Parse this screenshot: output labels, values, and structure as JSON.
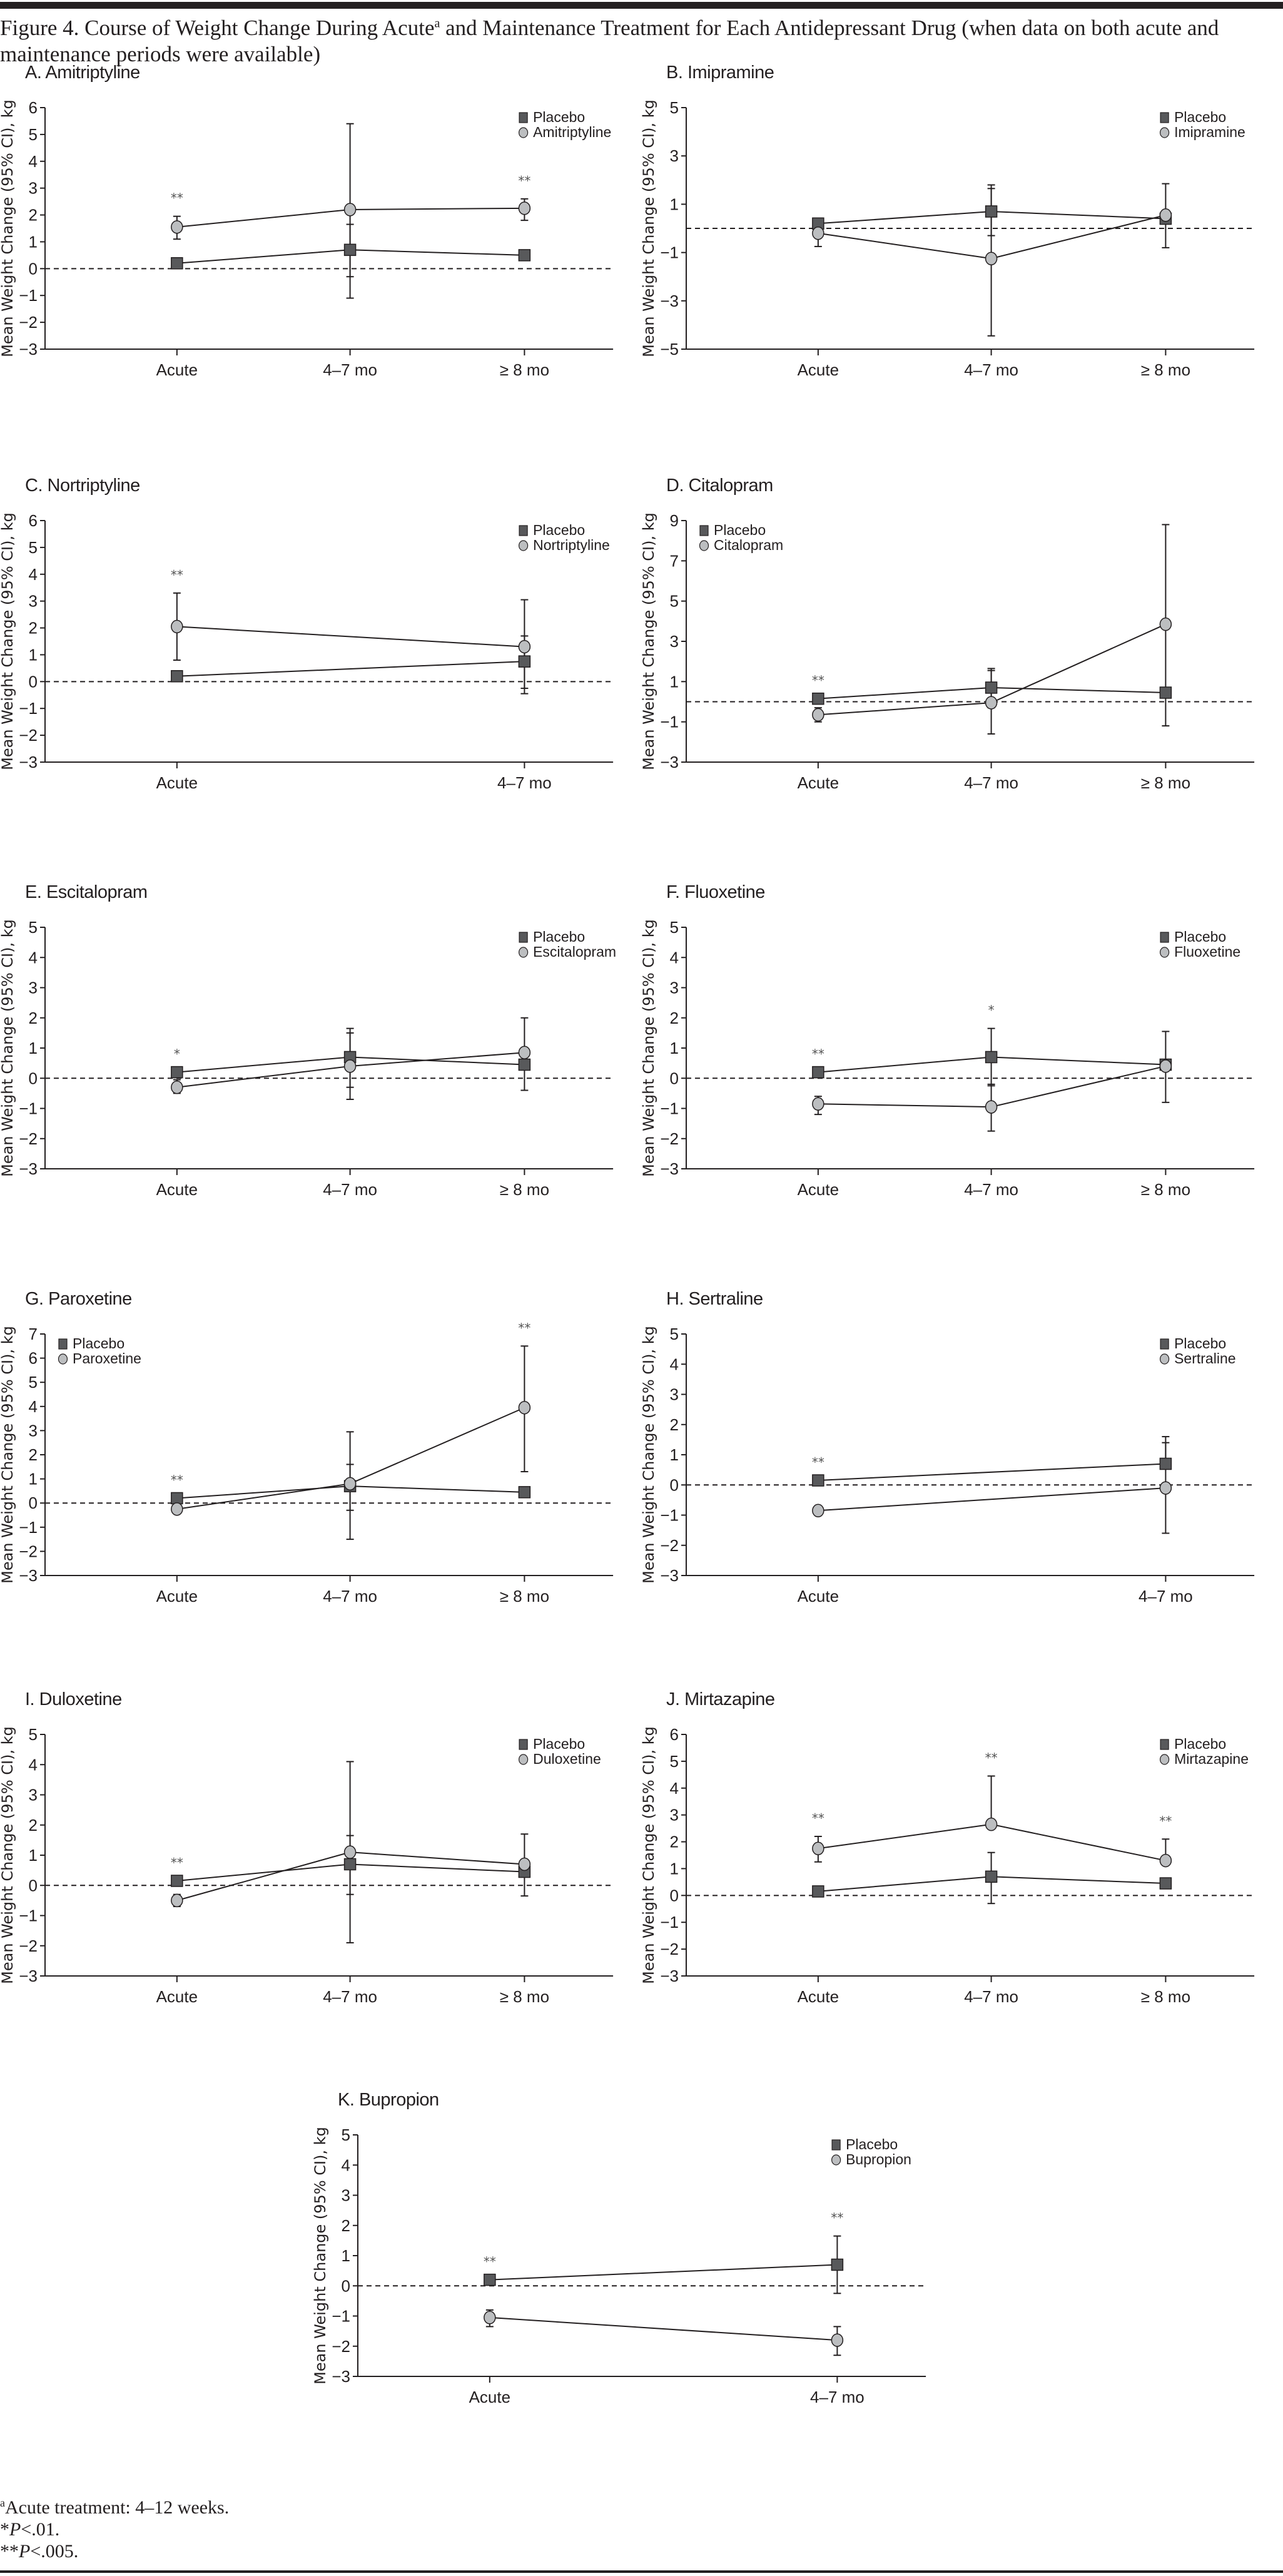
{
  "figure": {
    "title_part1": "Figure 4. Course of Weight Change During Acute",
    "title_sup": "a",
    "title_part2": " and Maintenance Treatment for Each Antidepressant Drug (when data on both acute and maintenance periods were available)"
  },
  "footnotes": {
    "a_marker": "a",
    "a_text": "Acute treatment: 4–12 weeks.",
    "single_star": "*",
    "single_p": "P",
    "single_text": "<.01.",
    "double_star": "**",
    "double_p": "P",
    "double_text": "<.005."
  },
  "colors": {
    "placebo_fill": "#58595b",
    "drug_fill": "#bcbec0",
    "axis": "#231f20",
    "significance": "#555555"
  },
  "chart_data": [
    {
      "type": "line",
      "panel": "A",
      "title": "A. Amitriptyline",
      "xlabel": "",
      "ylabel": "Mean Weight Change (95% CI), kg",
      "categories": [
        "Acute",
        "4–7 mo",
        "≥ 8 mo"
      ],
      "ylim": [
        -3,
        6
      ],
      "yticks": [
        6,
        5,
        4,
        3,
        2,
        1,
        0,
        -1,
        -2,
        -3
      ],
      "legend_position": "top-right",
      "reference_line": 0,
      "series": [
        {
          "name": "Placebo",
          "marker": "square",
          "values": [
            0.2,
            0.7,
            0.5
          ],
          "ci_low": [
            null,
            -0.3,
            null
          ],
          "ci_high": [
            null,
            1.65,
            null
          ]
        },
        {
          "name": "Amitriptyline",
          "marker": "circle",
          "values": [
            1.55,
            2.2,
            2.25
          ],
          "ci_low": [
            1.1,
            -1.1,
            1.8
          ],
          "ci_high": [
            1.95,
            5.4,
            2.6
          ]
        }
      ],
      "significance": [
        "**",
        "",
        "**"
      ]
    },
    {
      "type": "line",
      "panel": "B",
      "title": "B. Imipramine",
      "xlabel": "",
      "ylabel": "Mean Weight Change (95% CI), kg",
      "categories": [
        "Acute",
        "4–7 mo",
        "≥ 8 mo"
      ],
      "ylim": [
        -5,
        5
      ],
      "yticks": [
        5,
        3,
        1,
        -1,
        -3,
        -5
      ],
      "legend_position": "top-right",
      "reference_line": 0,
      "series": [
        {
          "name": "Placebo",
          "marker": "square",
          "values": [
            0.2,
            0.7,
            0.4
          ],
          "ci_low": [
            null,
            -0.3,
            null
          ],
          "ci_high": [
            null,
            1.65,
            null
          ]
        },
        {
          "name": "Imipramine",
          "marker": "circle",
          "values": [
            -0.2,
            -1.25,
            0.55
          ],
          "ci_low": [
            -0.75,
            -4.45,
            -0.8
          ],
          "ci_high": [
            null,
            1.8,
            1.85
          ]
        }
      ],
      "significance": [
        "",
        "",
        ""
      ]
    },
    {
      "type": "line",
      "panel": "C",
      "title": "C. Nortriptyline",
      "xlabel": "",
      "ylabel": "Mean Weight Change (95% CI), kg",
      "categories": [
        "Acute",
        "4–7 mo"
      ],
      "ylim": [
        -3,
        6
      ],
      "yticks": [
        6,
        5,
        4,
        3,
        2,
        1,
        0,
        -1,
        -2,
        -3
      ],
      "legend_position": "top-right",
      "reference_line": 0,
      "series": [
        {
          "name": "Placebo",
          "marker": "square",
          "values": [
            0.2,
            0.75
          ],
          "ci_low": [
            null,
            -0.25
          ],
          "ci_high": [
            null,
            1.7
          ]
        },
        {
          "name": "Nortriptyline",
          "marker": "circle",
          "values": [
            2.05,
            1.3
          ],
          "ci_low": [
            0.8,
            -0.45
          ],
          "ci_high": [
            3.3,
            3.05
          ]
        }
      ],
      "significance": [
        "**",
        ""
      ]
    },
    {
      "type": "line",
      "panel": "D",
      "title": "D. Citalopram",
      "xlabel": "",
      "ylabel": "Mean Weight Change (95% CI), kg",
      "categories": [
        "Acute",
        "4–7 mo",
        "≥ 8 mo"
      ],
      "ylim": [
        -3,
        9
      ],
      "yticks": [
        9,
        7,
        5,
        3,
        1,
        -1,
        -3
      ],
      "legend_position": "top-left",
      "reference_line": 0,
      "series": [
        {
          "name": "Placebo",
          "marker": "square",
          "values": [
            0.15,
            0.7,
            0.45
          ],
          "ci_low": [
            null,
            -0.3,
            null
          ],
          "ci_high": [
            null,
            1.65,
            null
          ]
        },
        {
          "name": "Citalopram",
          "marker": "circle",
          "values": [
            -0.65,
            -0.05,
            3.85
          ],
          "ci_low": [
            -1.0,
            -1.6,
            -1.2
          ],
          "ci_high": [
            -0.3,
            1.55,
            8.8
          ]
        }
      ],
      "significance": [
        "**",
        "",
        ""
      ]
    },
    {
      "type": "line",
      "panel": "E",
      "title": "E. Escitalopram",
      "xlabel": "",
      "ylabel": "Mean Weight Change (95% CI), kg",
      "categories": [
        "Acute",
        "4–7 mo",
        "≥ 8 mo"
      ],
      "ylim": [
        -3,
        5
      ],
      "yticks": [
        5,
        4,
        3,
        2,
        1,
        0,
        -1,
        -2,
        -3
      ],
      "legend_position": "top-right",
      "reference_line": 0,
      "series": [
        {
          "name": "Placebo",
          "marker": "square",
          "values": [
            0.2,
            0.7,
            0.45
          ],
          "ci_low": [
            null,
            -0.3,
            -0.4
          ],
          "ci_high": [
            null,
            1.65,
            null
          ]
        },
        {
          "name": "Escitalopram",
          "marker": "circle",
          "values": [
            -0.3,
            0.4,
            0.85
          ],
          "ci_low": [
            -0.5,
            -0.7,
            null
          ],
          "ci_high": [
            -0.05,
            1.5,
            2.0
          ]
        }
      ],
      "significance": [
        "*",
        "",
        ""
      ]
    },
    {
      "type": "line",
      "panel": "F",
      "title": "F. Fluoxetine",
      "xlabel": "",
      "ylabel": "Mean Weight Change (95% CI), kg",
      "categories": [
        "Acute",
        "4–7 mo",
        "≥ 8 mo"
      ],
      "ylim": [
        -3,
        5
      ],
      "yticks": [
        5,
        4,
        3,
        2,
        1,
        0,
        -1,
        -2,
        -3
      ],
      "legend_position": "top-right",
      "reference_line": 0,
      "series": [
        {
          "name": "Placebo",
          "marker": "square",
          "values": [
            0.2,
            0.7,
            0.45
          ],
          "ci_low": [
            null,
            -0.25,
            null
          ],
          "ci_high": [
            null,
            1.65,
            null
          ]
        },
        {
          "name": "Fluoxetine",
          "marker": "circle",
          "values": [
            -0.85,
            -0.95,
            0.4
          ],
          "ci_low": [
            -1.2,
            -1.75,
            -0.8
          ],
          "ci_high": [
            -0.6,
            -0.2,
            1.55
          ]
        }
      ],
      "significance": [
        "**",
        "*",
        ""
      ]
    },
    {
      "type": "line",
      "panel": "G",
      "title": "G. Paroxetine",
      "xlabel": "",
      "ylabel": "Mean Weight Change (95% CI), kg",
      "categories": [
        "Acute",
        "4–7 mo",
        "≥ 8 mo"
      ],
      "ylim": [
        -3,
        7
      ],
      "yticks": [
        7,
        6,
        5,
        4,
        3,
        2,
        1,
        0,
        -1,
        -2,
        -3
      ],
      "legend_position": "top-left",
      "reference_line": 0,
      "series": [
        {
          "name": "Placebo",
          "marker": "square",
          "values": [
            0.2,
            0.7,
            0.45
          ],
          "ci_low": [
            null,
            -0.3,
            null
          ],
          "ci_high": [
            null,
            1.6,
            null
          ]
        },
        {
          "name": "Paroxetine",
          "marker": "circle",
          "values": [
            -0.25,
            0.8,
            3.95
          ],
          "ci_low": [
            null,
            -1.5,
            1.3
          ],
          "ci_high": [
            null,
            2.95,
            6.5
          ]
        }
      ],
      "significance": [
        "**",
        "",
        "**"
      ]
    },
    {
      "type": "line",
      "panel": "H",
      "title": "H. Sertraline",
      "xlabel": "",
      "ylabel": "Mean Weight Change (95% CI), kg",
      "categories": [
        "Acute",
        "4–7 mo"
      ],
      "ylim": [
        -3,
        5
      ],
      "yticks": [
        5,
        4,
        3,
        2,
        1,
        0,
        -1,
        -2,
        -3
      ],
      "legend_position": "top-right",
      "reference_line": 0,
      "series": [
        {
          "name": "Placebo",
          "marker": "square",
          "values": [
            0.15,
            0.7
          ],
          "ci_low": [
            0.0,
            null
          ],
          "ci_high": [
            null,
            1.6
          ]
        },
        {
          "name": "Sertraline",
          "marker": "circle",
          "values": [
            -0.85,
            -0.1
          ],
          "ci_low": [
            -1.0,
            -1.6
          ],
          "ci_high": [
            -0.7,
            1.4
          ]
        }
      ],
      "significance": [
        "**",
        ""
      ]
    },
    {
      "type": "line",
      "panel": "I",
      "title": "I. Duloxetine",
      "xlabel": "",
      "ylabel": "Mean Weight Change (95% CI), kg",
      "categories": [
        "Acute",
        "4–7 mo",
        "≥ 8 mo"
      ],
      "ylim": [
        -3,
        5
      ],
      "yticks": [
        5,
        4,
        3,
        2,
        1,
        0,
        -1,
        -2,
        -3
      ],
      "legend_position": "top-right",
      "reference_line": 0,
      "series": [
        {
          "name": "Placebo",
          "marker": "square",
          "values": [
            0.15,
            0.7,
            0.45
          ],
          "ci_low": [
            null,
            -0.3,
            -0.35
          ],
          "ci_high": [
            null,
            1.65,
            null
          ]
        },
        {
          "name": "Duloxetine",
          "marker": "circle",
          "values": [
            -0.5,
            1.1,
            0.7
          ],
          "ci_low": [
            -0.7,
            -1.9,
            null
          ],
          "ci_high": [
            -0.3,
            4.1,
            1.7
          ]
        }
      ],
      "significance": [
        "**",
        "",
        ""
      ]
    },
    {
      "type": "line",
      "panel": "J",
      "title": "J. Mirtazapine",
      "xlabel": "",
      "ylabel": "Mean Weight Change (95% CI), kg",
      "categories": [
        "Acute",
        "4–7 mo",
        "≥ 8 mo"
      ],
      "ylim": [
        -3,
        6
      ],
      "yticks": [
        6,
        5,
        4,
        3,
        2,
        1,
        0,
        -1,
        -2,
        -3
      ],
      "legend_position": "top-right",
      "reference_line": 0,
      "series": [
        {
          "name": "Placebo",
          "marker": "square",
          "values": [
            0.15,
            0.7,
            0.45
          ],
          "ci_low": [
            null,
            -0.3,
            null
          ],
          "ci_high": [
            null,
            1.6,
            null
          ]
        },
        {
          "name": "Mirtazapine",
          "marker": "circle",
          "values": [
            1.75,
            2.65,
            1.3
          ],
          "ci_low": [
            1.25,
            null,
            null
          ],
          "ci_high": [
            2.2,
            4.45,
            2.1
          ]
        }
      ],
      "significance": [
        "**",
        "**",
        "**"
      ]
    },
    {
      "type": "line",
      "panel": "K",
      "title": "K. Bupropion",
      "xlabel": "",
      "ylabel": "Mean Weight Change (95% CI), kg",
      "categories": [
        "Acute",
        "4–7 mo"
      ],
      "ylim": [
        -3,
        5
      ],
      "yticks": [
        5,
        4,
        3,
        2,
        1,
        0,
        -1,
        -2,
        -3
      ],
      "legend_position": "top-right",
      "reference_line": 0,
      "series": [
        {
          "name": "Placebo",
          "marker": "square",
          "values": [
            0.2,
            0.7
          ],
          "ci_low": [
            null,
            -0.25
          ],
          "ci_high": [
            null,
            1.65
          ]
        },
        {
          "name": "Bupropion",
          "marker": "circle",
          "values": [
            -1.05,
            -1.8
          ],
          "ci_low": [
            -1.35,
            -2.3
          ],
          "ci_high": [
            -0.8,
            -1.35
          ]
        }
      ],
      "significance": [
        "**",
        "**"
      ]
    }
  ]
}
